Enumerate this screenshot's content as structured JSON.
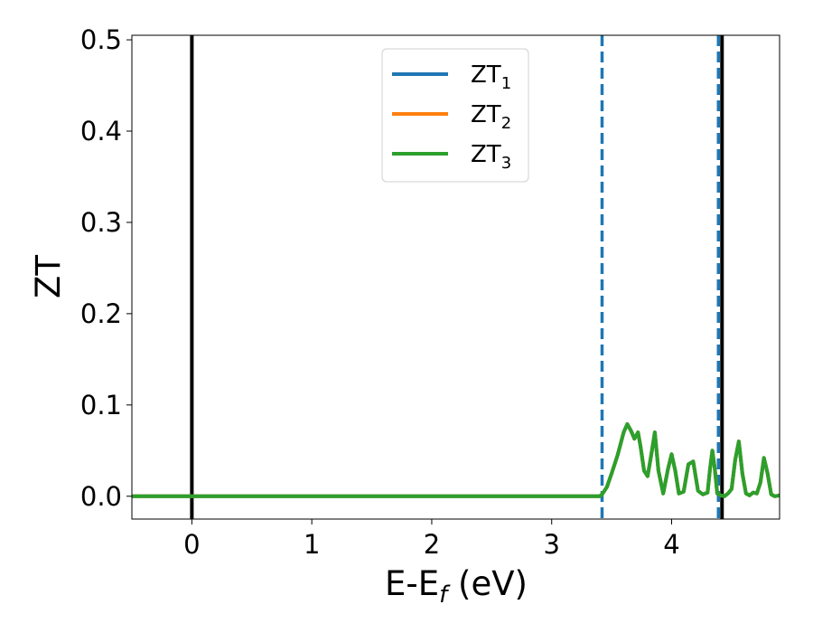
{
  "chart_data": {
    "type": "line",
    "xlabel": "E-E",
    "xlabel_sub": "f",
    "xlabel_unit": " (eV)",
    "ylabel": "ZT",
    "xlim": [
      -0.5,
      4.9
    ],
    "ylim": [
      -0.025,
      0.505
    ],
    "xticks": [
      0,
      1,
      2,
      3,
      4
    ],
    "xtick_labels": [
      "0",
      "1",
      "2",
      "3",
      "4"
    ],
    "yticks": [
      0.0,
      0.1,
      0.2,
      0.3,
      0.4,
      0.5
    ],
    "ytick_labels": [
      "0.0",
      "0.1",
      "0.2",
      "0.3",
      "0.4",
      "0.5"
    ],
    "grid": false,
    "legend_position": "top-center",
    "series": [
      {
        "name": "ZT",
        "name_sub": "1",
        "color": "#1f77b4",
        "x": [
          -0.5,
          3.4,
          3.42,
          3.46,
          3.5,
          3.55,
          3.6,
          3.63,
          3.66,
          3.69,
          3.72,
          3.74,
          3.77,
          3.8,
          3.83,
          3.86,
          3.89,
          3.93,
          3.97,
          4.0,
          4.03,
          4.06,
          4.1,
          4.14,
          4.18,
          4.22,
          4.26,
          4.3,
          4.32,
          4.34,
          4.36,
          4.38,
          4.41,
          4.44,
          4.47,
          4.5,
          4.53,
          4.56,
          4.59,
          4.62,
          4.65,
          4.68,
          4.71,
          4.74,
          4.77,
          4.8,
          4.83,
          4.86,
          4.9
        ],
        "y": [
          0.0,
          0.0,
          0.002,
          0.01,
          0.025,
          0.045,
          0.07,
          0.079,
          0.072,
          0.063,
          0.07,
          0.055,
          0.028,
          0.022,
          0.045,
          0.07,
          0.028,
          0.003,
          0.03,
          0.046,
          0.028,
          0.003,
          0.005,
          0.035,
          0.038,
          0.006,
          0.002,
          0.004,
          0.03,
          0.05,
          0.03,
          0.003,
          0.001,
          0.0,
          0.003,
          0.008,
          0.04,
          0.06,
          0.025,
          0.003,
          0.001,
          0.004,
          0.003,
          0.015,
          0.042,
          0.025,
          0.002,
          0.0,
          0.001
        ]
      },
      {
        "name": "ZT",
        "name_sub": "2",
        "color": "#ff7f0e",
        "x": [
          -0.5,
          3.4,
          3.42,
          3.46,
          3.5,
          3.55,
          3.6,
          3.63,
          3.66,
          3.69,
          3.72,
          3.74,
          3.77,
          3.8,
          3.83,
          3.86,
          3.89,
          3.93,
          3.97,
          4.0,
          4.03,
          4.06,
          4.1,
          4.14,
          4.18,
          4.22,
          4.26,
          4.3,
          4.32,
          4.34,
          4.36,
          4.38,
          4.41,
          4.44,
          4.47,
          4.5,
          4.53,
          4.56,
          4.59,
          4.62,
          4.65,
          4.68,
          4.71,
          4.74,
          4.77,
          4.8,
          4.83,
          4.86,
          4.9
        ],
        "y": [
          0.0,
          0.0,
          0.002,
          0.01,
          0.025,
          0.045,
          0.07,
          0.079,
          0.072,
          0.063,
          0.07,
          0.055,
          0.028,
          0.022,
          0.045,
          0.07,
          0.028,
          0.003,
          0.03,
          0.046,
          0.028,
          0.003,
          0.005,
          0.035,
          0.038,
          0.006,
          0.002,
          0.004,
          0.03,
          0.05,
          0.03,
          0.003,
          0.001,
          0.0,
          0.003,
          0.008,
          0.04,
          0.06,
          0.025,
          0.003,
          0.001,
          0.004,
          0.003,
          0.015,
          0.042,
          0.025,
          0.002,
          0.0,
          0.001
        ]
      },
      {
        "name": "ZT",
        "name_sub": "3",
        "color": "#2ca02c",
        "x": [
          -0.5,
          3.4,
          3.42,
          3.46,
          3.5,
          3.55,
          3.6,
          3.63,
          3.66,
          3.69,
          3.72,
          3.74,
          3.77,
          3.8,
          3.83,
          3.86,
          3.89,
          3.93,
          3.97,
          4.0,
          4.03,
          4.06,
          4.1,
          4.14,
          4.18,
          4.22,
          4.26,
          4.3,
          4.32,
          4.34,
          4.36,
          4.38,
          4.41,
          4.44,
          4.47,
          4.5,
          4.53,
          4.56,
          4.59,
          4.62,
          4.65,
          4.68,
          4.71,
          4.74,
          4.77,
          4.8,
          4.83,
          4.86,
          4.9
        ],
        "y": [
          0.0,
          0.0,
          0.002,
          0.01,
          0.025,
          0.045,
          0.07,
          0.079,
          0.072,
          0.063,
          0.07,
          0.055,
          0.028,
          0.022,
          0.045,
          0.07,
          0.028,
          0.003,
          0.03,
          0.046,
          0.028,
          0.003,
          0.005,
          0.035,
          0.038,
          0.006,
          0.002,
          0.004,
          0.03,
          0.05,
          0.03,
          0.003,
          0.001,
          0.0,
          0.003,
          0.008,
          0.04,
          0.06,
          0.025,
          0.003,
          0.001,
          0.004,
          0.003,
          0.015,
          0.042,
          0.025,
          0.002,
          0.0,
          0.001
        ]
      }
    ],
    "vlines": [
      {
        "x": 0.0,
        "style": "solid",
        "color": "#000000"
      },
      {
        "x": 4.42,
        "style": "solid",
        "color": "#000000"
      },
      {
        "x": 3.42,
        "style": "dashed",
        "color": "#1f77b4"
      },
      {
        "x": 4.39,
        "style": "dashed",
        "color": "#1f77b4"
      }
    ]
  }
}
